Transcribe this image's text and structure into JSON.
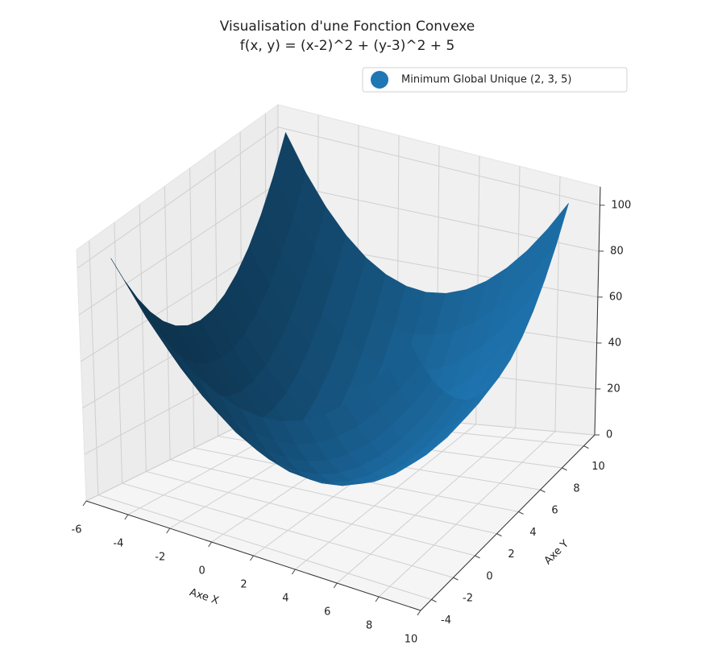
{
  "chart_data": {
    "type": "surface",
    "title": "Visualisation d'une Fonction Convexe",
    "subtitle": "f(x, y) = (x-2)^2 + (y-3)^2 + 5",
    "xlabel": "Axe X",
    "ylabel": "Axe Y",
    "color": "#1f77b4",
    "x": [
      -5,
      -4,
      -3,
      -2,
      -1,
      0,
      1,
      2,
      3,
      4,
      5,
      6,
      7,
      8,
      9
    ],
    "y": [
      -4,
      -3,
      -2,
      -1,
      0,
      1,
      2,
      3,
      4,
      5,
      6,
      7,
      8,
      9,
      10
    ],
    "z": [
      [
        103,
        90,
        79,
        70,
        63,
        58,
        55,
        54,
        55,
        58,
        63,
        70,
        79,
        90,
        103
      ],
      [
        90,
        77,
        66,
        57,
        50,
        45,
        42,
        41,
        42,
        45,
        50,
        57,
        66,
        77,
        90
      ],
      [
        79,
        66,
        55,
        46,
        39,
        34,
        31,
        30,
        31,
        34,
        39,
        46,
        55,
        66,
        79
      ],
      [
        70,
        57,
        46,
        37,
        30,
        25,
        22,
        21,
        22,
        25,
        30,
        37,
        46,
        57,
        70
      ],
      [
        63,
        50,
        39,
        30,
        23,
        18,
        15,
        14,
        15,
        18,
        23,
        30,
        39,
        50,
        63
      ],
      [
        58,
        45,
        34,
        25,
        18,
        13,
        10,
        9,
        10,
        13,
        18,
        25,
        34,
        45,
        58
      ],
      [
        55,
        42,
        31,
        22,
        15,
        10,
        7,
        6,
        7,
        10,
        15,
        22,
        31,
        42,
        55
      ],
      [
        54,
        41,
        30,
        21,
        14,
        9,
        6,
        5,
        6,
        9,
        14,
        21,
        30,
        41,
        54
      ],
      [
        55,
        42,
        31,
        22,
        15,
        10,
        7,
        6,
        7,
        10,
        15,
        22,
        31,
        42,
        55
      ],
      [
        58,
        45,
        34,
        25,
        18,
        13,
        10,
        9,
        10,
        13,
        18,
        25,
        34,
        45,
        58
      ],
      [
        63,
        50,
        39,
        30,
        23,
        18,
        15,
        14,
        15,
        18,
        23,
        30,
        39,
        50,
        63
      ],
      [
        70,
        57,
        46,
        37,
        30,
        25,
        22,
        21,
        22,
        25,
        30,
        37,
        46,
        57,
        70
      ],
      [
        79,
        66,
        55,
        46,
        39,
        34,
        31,
        30,
        31,
        34,
        39,
        46,
        55,
        66,
        79
      ],
      [
        90,
        77,
        66,
        57,
        50,
        45,
        42,
        41,
        42,
        45,
        50,
        57,
        66,
        77,
        90
      ],
      [
        103,
        90,
        79,
        70,
        63,
        58,
        55,
        54,
        55,
        58,
        63,
        70,
        79,
        90,
        103
      ]
    ],
    "point": {
      "name": "Minimum Global Unique (2, 3, 5)",
      "x": 2,
      "y": 3,
      "z": 5,
      "color": "#1f77b4"
    },
    "xlim": [
      -6,
      10
    ],
    "ylim": [
      -5,
      11
    ],
    "zlim": [
      0,
      108
    ],
    "xticks": [
      -6,
      -4,
      -2,
      0,
      2,
      4,
      6,
      8,
      10
    ],
    "yticks": [
      -4,
      -2,
      0,
      2,
      4,
      6,
      8,
      10
    ],
    "zticks": [
      0,
      20,
      40,
      60,
      80,
      100
    ],
    "grid": true,
    "legend": "upper right"
  }
}
